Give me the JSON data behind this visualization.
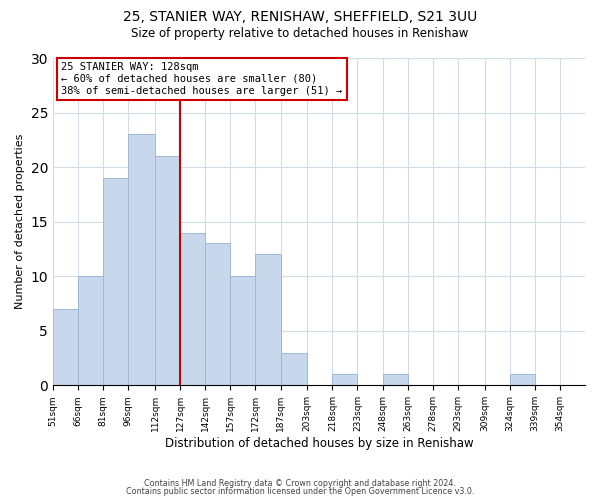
{
  "title1": "25, STANIER WAY, RENISHAW, SHEFFIELD, S21 3UU",
  "title2": "Size of property relative to detached houses in Renishaw",
  "xlabel": "Distribution of detached houses by size in Renishaw",
  "ylabel": "Number of detached properties",
  "bar_edges": [
    51,
    66,
    81,
    96,
    112,
    127,
    142,
    157,
    172,
    187,
    203,
    218,
    233,
    248,
    263,
    278,
    293,
    309,
    324,
    339,
    354,
    369
  ],
  "bar_heights": [
    7,
    10,
    19,
    23,
    21,
    14,
    13,
    10,
    12,
    3,
    0,
    1,
    0,
    1,
    0,
    0,
    0,
    0,
    1,
    0,
    0
  ],
  "bar_color": "#c8d8ec",
  "bar_edge_color": "#a0b8d8",
  "ref_line_x": 127,
  "ref_line_color": "#cc0000",
  "xlim_left": 51,
  "xlim_right": 369,
  "ylim": [
    0,
    30
  ],
  "yticks": [
    0,
    5,
    10,
    15,
    20,
    25,
    30
  ],
  "annotation_title": "25 STANIER WAY: 128sqm",
  "annotation_line1": "← 60% of detached houses are smaller (80)",
  "annotation_line2": "38% of semi-detached houses are larger (51) →",
  "annotation_box_color": "#ffffff",
  "annotation_box_edge": "#cc0000",
  "footer1": "Contains HM Land Registry data © Crown copyright and database right 2024.",
  "footer2": "Contains public sector information licensed under the Open Government Licence v3.0.",
  "tick_labels": [
    "51sqm",
    "66sqm",
    "81sqm",
    "96sqm",
    "112sqm",
    "127sqm",
    "142sqm",
    "157sqm",
    "172sqm",
    "187sqm",
    "203sqm",
    "218sqm",
    "233sqm",
    "248sqm",
    "263sqm",
    "278sqm",
    "293sqm",
    "309sqm",
    "324sqm",
    "339sqm",
    "354sqm"
  ],
  "background_color": "#ffffff",
  "grid_color": "#d0dce8"
}
